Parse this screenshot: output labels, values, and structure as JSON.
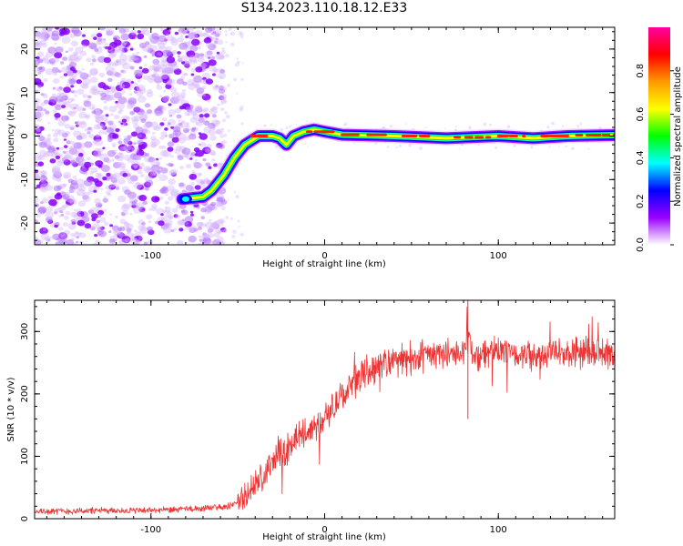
{
  "figure": {
    "title": "S134.2023.110.18.12.E33"
  },
  "chart_data": [
    {
      "type": "heatmap",
      "title": "",
      "xlabel": "Height of straight line (km)",
      "ylabel": "Frequency (Hz)",
      "xlim": [
        -167,
        167
      ],
      "ylim": [
        -25,
        25
      ],
      "x_ticks": [
        -100,
        0,
        100
      ],
      "x_tick_labels": [
        "-100",
        "0",
        "100"
      ],
      "y_ticks": [
        -20,
        -10,
        0,
        10,
        20
      ],
      "y_tick_labels": [
        "-20",
        "-10",
        "0",
        "10",
        "20"
      ],
      "noise_region_x": [
        -167,
        -60
      ],
      "track": [
        {
          "x": -82,
          "y": -14.5
        },
        {
          "x": -70,
          "y": -14
        },
        {
          "x": -65,
          "y": -12.5
        },
        {
          "x": -58,
          "y": -9
        },
        {
          "x": -52,
          "y": -5
        },
        {
          "x": -46,
          "y": -2
        },
        {
          "x": -42,
          "y": -1
        },
        {
          "x": -38,
          "y": 0
        },
        {
          "x": -30,
          "y": 0
        },
        {
          "x": -26,
          "y": -0.5
        },
        {
          "x": -22,
          "y": -2
        },
        {
          "x": -18,
          "y": 0
        },
        {
          "x": -12,
          "y": 1
        },
        {
          "x": -6,
          "y": 1.5
        },
        {
          "x": 0,
          "y": 1
        },
        {
          "x": 10,
          "y": 0.3
        },
        {
          "x": 40,
          "y": 0
        },
        {
          "x": 70,
          "y": -0.5
        },
        {
          "x": 100,
          "y": 0
        },
        {
          "x": 120,
          "y": -0.5
        },
        {
          "x": 140,
          "y": 0
        },
        {
          "x": 167,
          "y": 0.2
        }
      ],
      "grid": false,
      "colorbar": {
        "label": "Normalized spectral amplitude",
        "range": [
          0,
          1
        ],
        "ticks": [
          0.0,
          0.2,
          0.4,
          0.6,
          0.8
        ],
        "tick_labels": [
          "0.0",
          "0.2",
          "0.4",
          "0.6",
          "0.8"
        ],
        "colors": [
          "#ffffff",
          "#9a00ff",
          "#0000ff",
          "#00ffff",
          "#00ff00",
          "#ffff00",
          "#ff9900",
          "#ff0000",
          "#ff00a0"
        ]
      }
    },
    {
      "type": "line",
      "title": "",
      "xlabel": "Height of straight line (km)",
      "ylabel": "SNR (10 * v/v)",
      "xlim": [
        -167,
        167
      ],
      "ylim": [
        0,
        350
      ],
      "x_ticks": [
        -100,
        0,
        100
      ],
      "x_tick_labels": [
        "-100",
        "0",
        "100"
      ],
      "y_ticks": [
        0,
        100,
        200,
        300
      ],
      "y_tick_labels": [
        "0",
        "100",
        "200",
        "300"
      ],
      "color": "#ee3333",
      "grid": false,
      "series": [
        {
          "x": [
            -167,
            -150,
            -130,
            -110,
            -90,
            -70,
            -55,
            -45,
            -40,
            -35,
            -30,
            -25,
            -20,
            -15,
            -10,
            -5,
            0,
            5,
            10,
            15,
            20,
            25,
            30,
            40,
            50,
            60,
            70,
            80,
            83,
            85,
            90,
            100,
            110,
            120,
            130,
            140,
            150,
            160,
            167
          ],
          "values": [
            12,
            12,
            13,
            13,
            14,
            16,
            20,
            35,
            55,
            70,
            90,
            100,
            118,
            130,
            140,
            150,
            160,
            178,
            195,
            212,
            228,
            238,
            245,
            252,
            258,
            262,
            265,
            262,
            300,
            260,
            265,
            268,
            262,
            265,
            268,
            262,
            265,
            268,
            262
          ]
        }
      ]
    }
  ]
}
